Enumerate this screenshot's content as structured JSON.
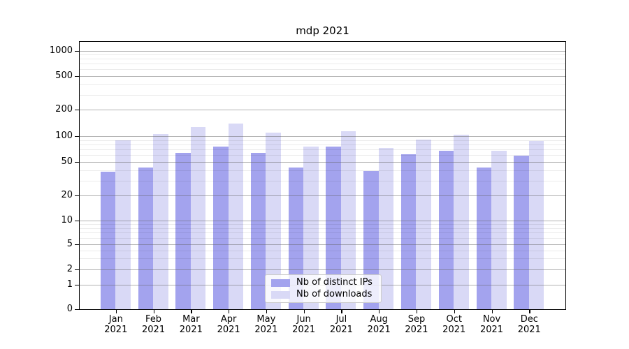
{
  "chart_data": {
    "type": "bar",
    "title": "mdp 2021",
    "yscale": "symlog",
    "ylim": [
      0,
      1320
    ],
    "grid": "horizontal major+minor, drawn over bars",
    "legend_position": "lower center",
    "categories": [
      "Jan 2021",
      "Feb 2021",
      "Mar 2021",
      "Apr 2021",
      "May 2021",
      "Jun 2021",
      "Jul 2021",
      "Aug 2021",
      "Sep 2021",
      "Oct 2021",
      "Nov 2021",
      "Dec 2021"
    ],
    "series": [
      {
        "name": "Nb of distinct IPs",
        "color": "#a3a3ee",
        "values": [
          38,
          43,
          64,
          75,
          64,
          43,
          75,
          39,
          62,
          68,
          43,
          59
        ]
      },
      {
        "name": "Nb of downloads",
        "color": "#d9d9f6",
        "values": [
          90,
          106,
          126,
          138,
          109,
          75,
          114,
          73,
          91,
          103,
          67,
          87
        ]
      }
    ],
    "y_major_ticks": [
      0,
      1,
      2,
      5,
      10,
      20,
      50,
      100,
      200,
      500,
      1000
    ],
    "y_minor_gridlines": [
      3,
      4,
      6,
      7,
      8,
      9,
      30,
      40,
      60,
      70,
      80,
      90,
      300,
      400,
      600,
      700,
      800,
      900
    ]
  },
  "colors": {
    "background": "#ffffff",
    "spine": "#000000",
    "grid_major": "#b0b0b0",
    "grid_minor": "#ebebeb",
    "bar_distinct_ips": "#a3a3ee",
    "bar_downloads": "#d9d9f6"
  }
}
